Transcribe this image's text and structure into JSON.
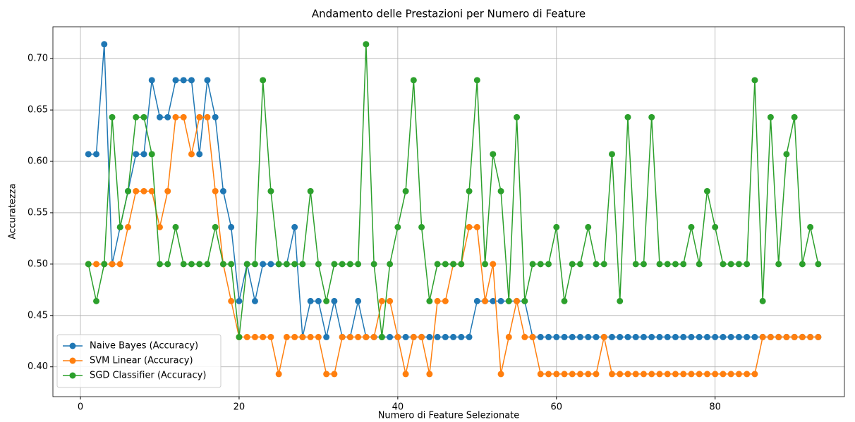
{
  "chart_data": {
    "type": "line",
    "title": "Andamento delle Prestazioni per Numero di Feature",
    "x_label": "Numero di Feature Selezionate",
    "y_label": "Accuratezza",
    "x": [
      1,
      2,
      3,
      4,
      5,
      6,
      7,
      8,
      9,
      10,
      11,
      12,
      13,
      14,
      15,
      16,
      17,
      18,
      19,
      20,
      21,
      22,
      23,
      24,
      25,
      26,
      27,
      28,
      29,
      30,
      31,
      32,
      33,
      34,
      35,
      36,
      37,
      38,
      39,
      40,
      41,
      42,
      43,
      44,
      45,
      46,
      47,
      48,
      49,
      50,
      51,
      52,
      53,
      54,
      55,
      56,
      57,
      58,
      59,
      60,
      61,
      62,
      63,
      64,
      65,
      66,
      67,
      68,
      69,
      70,
      71,
      72,
      73,
      74,
      75,
      76,
      77,
      78,
      79,
      80,
      81,
      82,
      83,
      84,
      85,
      86,
      87,
      88,
      89,
      90,
      91,
      92,
      93
    ],
    "series": [
      {
        "name": "Naive Bayes (Accuracy)",
        "color": "#1f77b4",
        "values": [
          0.607,
          0.607,
          0.714,
          0.5,
          0.536,
          0.571,
          0.607,
          0.607,
          0.679,
          0.643,
          0.643,
          0.679,
          0.679,
          0.679,
          0.607,
          0.679,
          0.643,
          0.571,
          0.536,
          0.464,
          0.5,
          0.464,
          0.5,
          0.5,
          0.5,
          0.5,
          0.536,
          0.429,
          0.464,
          0.464,
          0.429,
          0.464,
          0.429,
          0.429,
          0.464,
          0.429,
          0.429,
          0.429,
          0.429,
          0.429,
          0.429,
          0.429,
          0.429,
          0.429,
          0.429,
          0.429,
          0.429,
          0.429,
          0.429,
          0.464,
          0.464,
          0.464,
          0.464,
          0.464,
          0.464,
          0.464,
          0.429,
          0.429,
          0.429,
          0.429,
          0.429,
          0.429,
          0.429,
          0.429,
          0.429,
          0.429,
          0.429,
          0.429,
          0.429,
          0.429,
          0.429,
          0.429,
          0.429,
          0.429,
          0.429,
          0.429,
          0.429,
          0.429,
          0.429,
          0.429,
          0.429,
          0.429,
          0.429,
          0.429,
          0.429,
          0.429,
          0.429,
          0.429,
          0.429,
          0.429,
          0.429,
          0.429,
          0.429
        ]
      },
      {
        "name": "SVM Linear (Accuracy)",
        "color": "#ff7f0e",
        "values": [
          0.5,
          0.5,
          0.5,
          0.5,
          0.5,
          0.536,
          0.571,
          0.571,
          0.571,
          0.536,
          0.571,
          0.643,
          0.643,
          0.607,
          0.643,
          0.643,
          0.571,
          0.5,
          0.464,
          0.429,
          0.429,
          0.429,
          0.429,
          0.429,
          0.393,
          0.429,
          0.429,
          0.429,
          0.429,
          0.429,
          0.393,
          0.393,
          0.429,
          0.429,
          0.429,
          0.429,
          0.429,
          0.464,
          0.464,
          0.429,
          0.393,
          0.429,
          0.429,
          0.393,
          0.464,
          0.464,
          0.5,
          0.5,
          0.536,
          0.536,
          0.464,
          0.5,
          0.393,
          0.429,
          0.464,
          0.429,
          0.429,
          0.393,
          0.393,
          0.393,
          0.393,
          0.393,
          0.393,
          0.393,
          0.393,
          0.429,
          0.393,
          0.393,
          0.393,
          0.393,
          0.393,
          0.393,
          0.393,
          0.393,
          0.393,
          0.393,
          0.393,
          0.393,
          0.393,
          0.393,
          0.393,
          0.393,
          0.393,
          0.393,
          0.393,
          0.429,
          0.429,
          0.429,
          0.429,
          0.429,
          0.429,
          0.429,
          0.429
        ]
      },
      {
        "name": "SGD Classifier (Accuracy)",
        "color": "#2ca02c",
        "values": [
          0.5,
          0.464,
          0.5,
          0.643,
          0.536,
          0.571,
          0.643,
          0.643,
          0.607,
          0.5,
          0.5,
          0.536,
          0.5,
          0.5,
          0.5,
          0.5,
          0.536,
          0.5,
          0.5,
          0.429,
          0.5,
          0.5,
          0.679,
          0.571,
          0.5,
          0.5,
          0.5,
          0.5,
          0.571,
          0.5,
          0.464,
          0.5,
          0.5,
          0.5,
          0.5,
          0.714,
          0.5,
          0.429,
          0.5,
          0.536,
          0.571,
          0.679,
          0.536,
          0.464,
          0.5,
          0.5,
          0.5,
          0.5,
          0.571,
          0.679,
          0.5,
          0.607,
          0.571,
          0.464,
          0.643,
          0.464,
          0.5,
          0.5,
          0.5,
          0.536,
          0.464,
          0.5,
          0.5,
          0.536,
          0.5,
          0.5,
          0.607,
          0.464,
          0.643,
          0.5,
          0.5,
          0.643,
          0.5,
          0.5,
          0.5,
          0.5,
          0.536,
          0.5,
          0.571,
          0.536,
          0.5,
          0.5,
          0.5,
          0.5,
          0.679,
          0.464,
          0.643,
          0.5,
          0.607,
          0.643,
          0.5,
          0.536,
          0.5
        ]
      }
    ],
    "xlim": [
      -3.47,
      96.3
    ],
    "ylim": [
      0.371,
      0.731
    ],
    "xticks": [
      0,
      20,
      40,
      60,
      80
    ],
    "yticks": [
      {
        "value": 0.4,
        "label": "0.40"
      },
      0.45,
      {
        "value": 0.5,
        "label": "0.50"
      },
      0.55,
      {
        "value": 0.6,
        "label": "0.60"
      },
      0.65,
      {
        "value": 0.7,
        "label": "0.70"
      }
    ],
    "grid": true,
    "legend": "lower left"
  }
}
